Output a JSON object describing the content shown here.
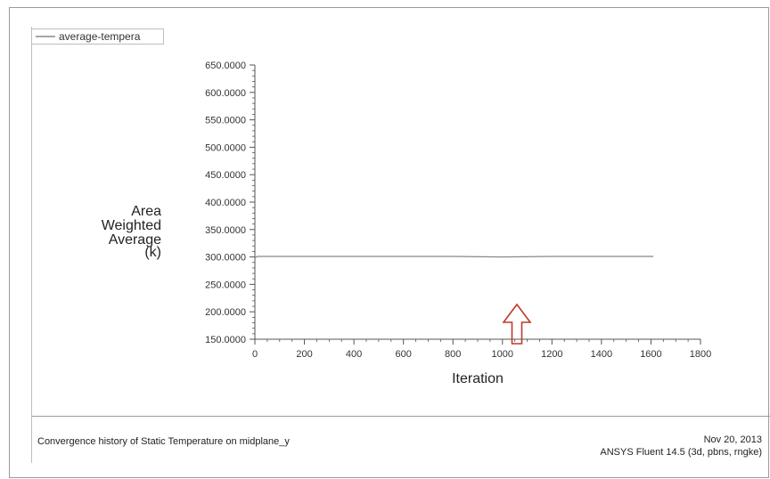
{
  "chart_data": {
    "type": "line",
    "legend": [
      "average-tempera"
    ],
    "legend_position": "top-left",
    "xlabel": "Iteration",
    "ylabel_lines": [
      "Area",
      "Weighted",
      "Average",
      "(k)"
    ],
    "xlim": [
      0,
      1800
    ],
    "ylim": [
      150,
      650
    ],
    "x_ticks": [
      "0",
      "200",
      "400",
      "600",
      "800",
      "1000",
      "1200",
      "1400",
      "1600",
      "1800"
    ],
    "y_ticks": [
      "150.0000",
      "200.0000",
      "250.0000",
      "300.0000",
      "350.0000",
      "400.0000",
      "450.0000",
      "500.0000",
      "550.0000",
      "600.0000",
      "650.0000"
    ],
    "series": [
      {
        "name": "average-tempera",
        "x": [
          0,
          10,
          50,
          200,
          400,
          600,
          800,
          1000,
          1200,
          1400,
          1610
        ],
        "y": [
          298,
          301,
          301,
          301,
          301,
          301,
          301,
          300,
          301,
          301,
          301
        ]
      }
    ],
    "grid": false,
    "annotation": "red-up-arrow"
  },
  "footer": {
    "caption": "Convergence history of Static Temperature on midplane_y",
    "date": "Nov 20, 2013",
    "software": "ANSYS Fluent 14.5 (3d, pbns, rngke)"
  },
  "colors": {
    "series": "#888888",
    "arrow": "#c0392b",
    "axis": "#555555"
  }
}
